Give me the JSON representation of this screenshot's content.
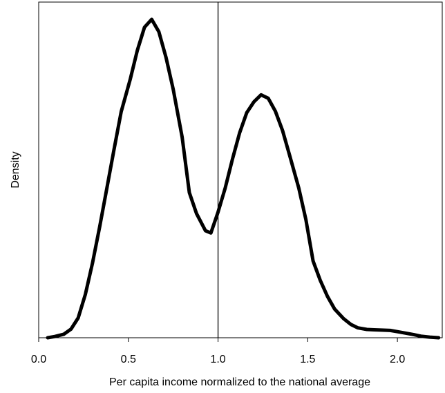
{
  "chart_data": {
    "type": "line",
    "title": "",
    "xlabel": "Per capita income normalized to the national average",
    "ylabel": "Density",
    "xlim": [
      0.0,
      2.25
    ],
    "ylim": [
      0,
      1.0
    ],
    "x_ticks": [
      "0.0",
      "0.5",
      "1.0",
      "1.5",
      "2.0"
    ],
    "y_ticks_shown": false,
    "grid": false,
    "reference_line_x": 1.0,
    "line_color": "#000000",
    "series": [
      {
        "x": [
          0.05,
          0.09,
          0.14,
          0.18,
          0.22,
          0.26,
          0.3,
          0.34,
          0.38,
          0.42,
          0.46,
          0.51,
          0.55,
          0.59,
          0.63,
          0.67,
          0.71,
          0.75,
          0.8,
          0.84,
          0.88,
          0.93,
          0.96,
          1.0,
          1.04,
          1.08,
          1.12,
          1.16,
          1.2,
          1.24,
          1.28,
          1.32,
          1.36,
          1.4,
          1.45,
          1.49,
          1.53,
          1.57,
          1.61,
          1.65,
          1.7,
          1.74,
          1.78,
          1.83,
          1.87,
          1.91,
          1.96,
          2.0,
          2.04,
          2.09,
          2.13,
          2.18,
          2.23
        ],
        "y": [
          0.0,
          0.004,
          0.011,
          0.027,
          0.062,
          0.136,
          0.235,
          0.348,
          0.469,
          0.591,
          0.71,
          0.811,
          0.903,
          0.975,
          1.0,
          0.961,
          0.88,
          0.78,
          0.63,
          0.456,
          0.39,
          0.336,
          0.329,
          0.395,
          0.47,
          0.56,
          0.643,
          0.707,
          0.741,
          0.763,
          0.752,
          0.711,
          0.65,
          0.571,
          0.47,
          0.371,
          0.241,
          0.18,
          0.13,
          0.09,
          0.06,
          0.042,
          0.031,
          0.026,
          0.025,
          0.024,
          0.023,
          0.019,
          0.015,
          0.01,
          0.005,
          0.002,
          0.0
        ]
      }
    ]
  }
}
